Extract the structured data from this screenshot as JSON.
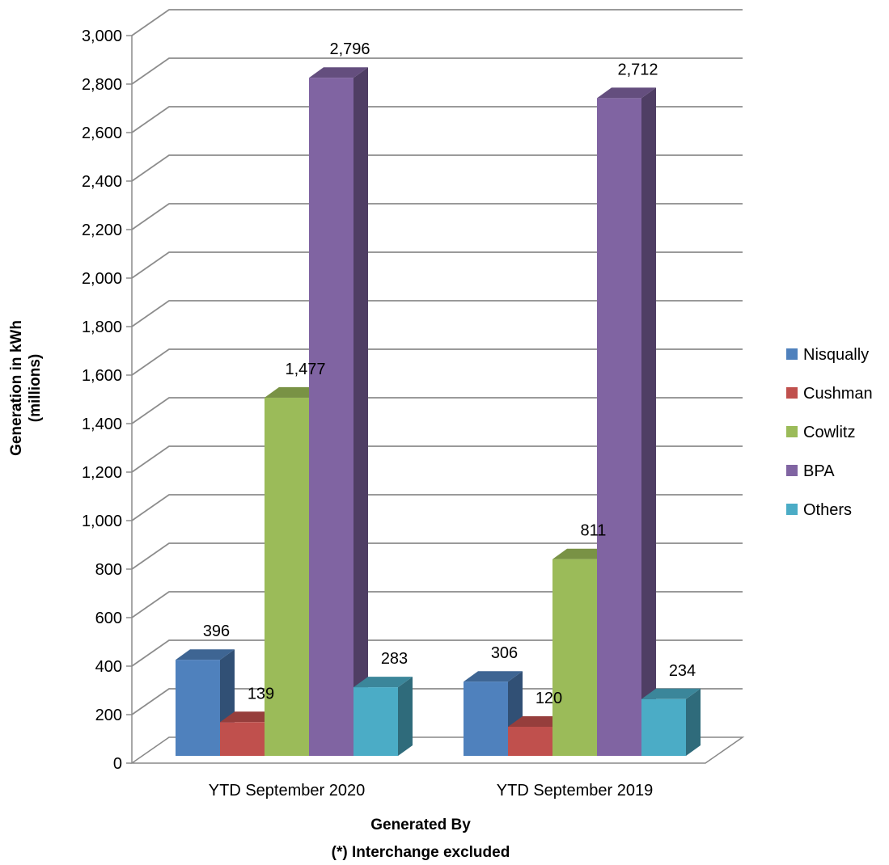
{
  "chart_data": {
    "type": "bar",
    "categories": [
      "YTD September 2020",
      "YTD September 2019"
    ],
    "series": [
      {
        "name": "Nisqually",
        "values": [
          396,
          306
        ],
        "color": "#4F81BD"
      },
      {
        "name": "Cushman",
        "values": [
          139,
          120
        ],
        "color": "#C0504D"
      },
      {
        "name": "Cowlitz",
        "values": [
          1477,
          811
        ],
        "color": "#9BBB59"
      },
      {
        "name": "BPA",
        "values": [
          2796,
          2712
        ],
        "color": "#8064A2"
      },
      {
        "name": "Others",
        "values": [
          283,
          234
        ],
        "color": "#4BACC6"
      }
    ],
    "data_labels": [
      [
        "396",
        "306"
      ],
      [
        "139",
        "120"
      ],
      [
        "1,477",
        "811"
      ],
      [
        "2,796",
        "2,712"
      ],
      [
        "283",
        "234"
      ]
    ],
    "ylim": [
      0,
      3000
    ],
    "y_tick_labels": [
      "0",
      "200",
      "400",
      "600",
      "800",
      "1,000",
      "1,200",
      "1,400",
      "1,600",
      "1,800",
      "2,000",
      "2,200",
      "2,400",
      "2,600",
      "2,800",
      "3,000"
    ],
    "ylabel": "Generation in kWh",
    "ylabel_line2": "(millions)",
    "xlabel": "Generated By",
    "xlabel_line2": "(*) Interchange excluded",
    "grid": true,
    "legend_position": "right",
    "style": "3d-clustered-column"
  }
}
